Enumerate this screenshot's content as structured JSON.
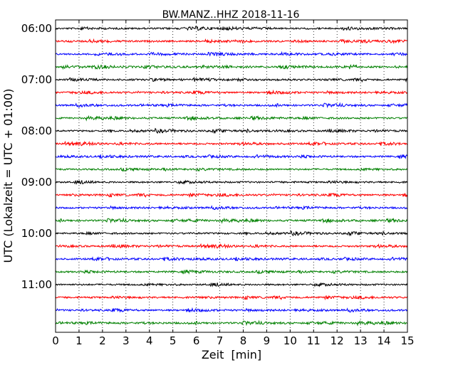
{
  "chart_data": {
    "type": "line",
    "title": "BW.MANZ..HHZ 2018-11-16",
    "xlabel": "Zeit  [min]",
    "ylabel": "UTC (Lokalzeit = UTC + 01:00)",
    "xlim": [
      0,
      15
    ],
    "x_ticks": [
      "0",
      "1",
      "2",
      "3",
      "4",
      "5",
      "6",
      "7",
      "8",
      "9",
      "10",
      "11",
      "12",
      "13",
      "14",
      "15"
    ],
    "y_tick_labels": [
      "06:00",
      "07:00",
      "08:00",
      "09:00",
      "10:00",
      "11:00"
    ],
    "traces_per_hour": 4,
    "trace_minutes": 15,
    "trace_colors": [
      "#000000",
      "#ff0000",
      "#0000ff",
      "#008000"
    ],
    "grid": "vertical dotted",
    "traces": [
      {
        "label": "06:00",
        "color": "#000000"
      },
      {
        "label": "06:15",
        "color": "#ff0000"
      },
      {
        "label": "06:30",
        "color": "#0000ff"
      },
      {
        "label": "06:45",
        "color": "#008000"
      },
      {
        "label": "07:00",
        "color": "#000000"
      },
      {
        "label": "07:15",
        "color": "#ff0000"
      },
      {
        "label": "07:30",
        "color": "#0000ff"
      },
      {
        "label": "07:45",
        "color": "#008000"
      },
      {
        "label": "08:00",
        "color": "#000000"
      },
      {
        "label": "08:15",
        "color": "#ff0000"
      },
      {
        "label": "08:30",
        "color": "#0000ff"
      },
      {
        "label": "08:45",
        "color": "#008000"
      },
      {
        "label": "09:00",
        "color": "#000000"
      },
      {
        "label": "09:15",
        "color": "#ff0000"
      },
      {
        "label": "09:30",
        "color": "#0000ff"
      },
      {
        "label": "09:45",
        "color": "#008000"
      },
      {
        "label": "10:00",
        "color": "#000000"
      },
      {
        "label": "10:15",
        "color": "#ff0000"
      },
      {
        "label": "10:30",
        "color": "#0000ff"
      },
      {
        "label": "10:45",
        "color": "#008000"
      },
      {
        "label": "11:00",
        "color": "#000000"
      },
      {
        "label": "11:15",
        "color": "#ff0000"
      },
      {
        "label": "11:30",
        "color": "#0000ff"
      },
      {
        "label": "11:45",
        "color": "#008000"
      }
    ]
  }
}
